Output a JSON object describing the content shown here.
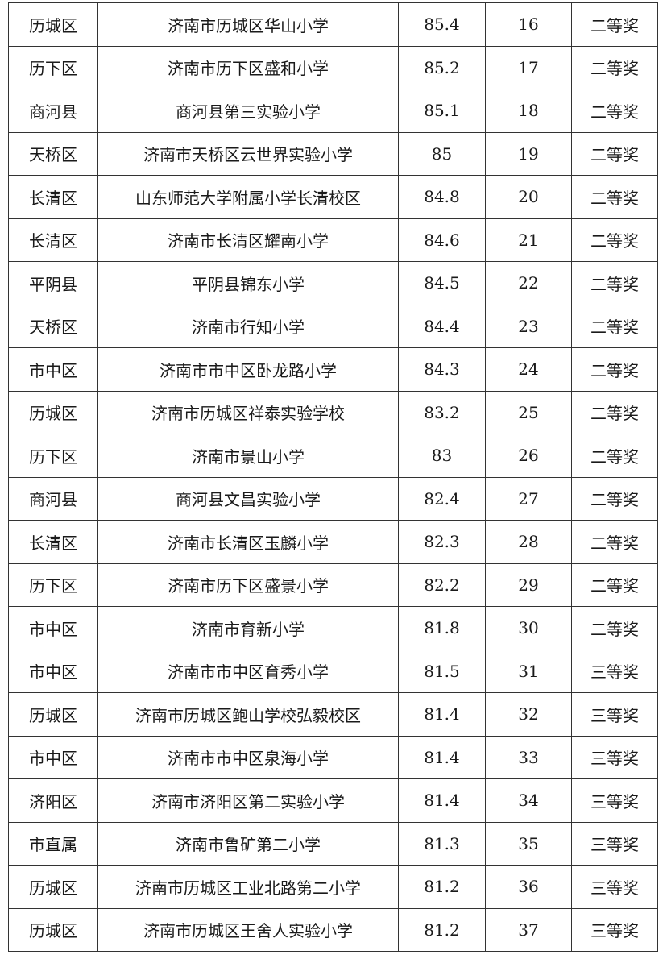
{
  "rows": [
    {
      "district": "历城区",
      "school": "济南市历城区华山小学",
      "score": "85.4",
      "rank": "16",
      "award": "二等奖"
    },
    {
      "district": "历下区",
      "school": "济南市历下区盛和小学",
      "score": "85.2",
      "rank": "17",
      "award": "二等奖"
    },
    {
      "district": "商河县",
      "school": "商河县第三实验小学",
      "score": "85.1",
      "rank": "18",
      "award": "二等奖"
    },
    {
      "district": "天桥区",
      "school": "济南市天桥区云世界实验小学",
      "score": "85",
      "rank": "19",
      "award": "二等奖"
    },
    {
      "district": "长清区",
      "school": "山东师范大学附属小学长清校区",
      "score": "84.8",
      "rank": "20",
      "award": "二等奖"
    },
    {
      "district": "长清区",
      "school": "济南市长清区耀南小学",
      "score": "84.6",
      "rank": "21",
      "award": "二等奖"
    },
    {
      "district": "平阴县",
      "school": "平阴县锦东小学",
      "score": "84.5",
      "rank": "22",
      "award": "二等奖"
    },
    {
      "district": "天桥区",
      "school": "济南市行知小学",
      "score": "84.4",
      "rank": "23",
      "award": "二等奖"
    },
    {
      "district": "市中区",
      "school": "济南市市中区卧龙路小学",
      "score": "84.3",
      "rank": "24",
      "award": "二等奖"
    },
    {
      "district": "历城区",
      "school": "济南市历城区祥泰实验学校",
      "score": "83.2",
      "rank": "25",
      "award": "二等奖"
    },
    {
      "district": "历下区",
      "school": "济南市景山小学",
      "score": "83",
      "rank": "26",
      "award": "二等奖"
    },
    {
      "district": "商河县",
      "school": "商河县文昌实验小学",
      "score": "82.4",
      "rank": "27",
      "award": "二等奖"
    },
    {
      "district": "长清区",
      "school": "济南市长清区玉麟小学",
      "score": "82.3",
      "rank": "28",
      "award": "二等奖"
    },
    {
      "district": "历下区",
      "school": "济南市历下区盛景小学",
      "score": "82.2",
      "rank": "29",
      "award": "二等奖"
    },
    {
      "district": "市中区",
      "school": "济南市育新小学",
      "score": "81.8",
      "rank": "30",
      "award": "二等奖"
    },
    {
      "district": "市中区",
      "school": "济南市市中区育秀小学",
      "score": "81.5",
      "rank": "31",
      "award": "三等奖"
    },
    {
      "district": "历城区",
      "school": "济南市历城区鲍山学校弘毅校区",
      "score": "81.4",
      "rank": "32",
      "award": "三等奖"
    },
    {
      "district": "市中区",
      "school": "济南市市中区泉海小学",
      "score": "81.4",
      "rank": "33",
      "award": "三等奖"
    },
    {
      "district": "济阳区",
      "school": "济南市济阳区第二实验小学",
      "score": "81.4",
      "rank": "34",
      "award": "三等奖"
    },
    {
      "district": "市直属",
      "school": "济南市鲁矿第二小学",
      "score": "81.3",
      "rank": "35",
      "award": "三等奖"
    },
    {
      "district": "历城区",
      "school": "济南市历城区工业北路第二小学",
      "score": "81.2",
      "rank": "36",
      "award": "三等奖"
    },
    {
      "district": "历城区",
      "school": "济南市历城区王舍人实验小学",
      "score": "81.2",
      "rank": "37",
      "award": "三等奖"
    }
  ]
}
